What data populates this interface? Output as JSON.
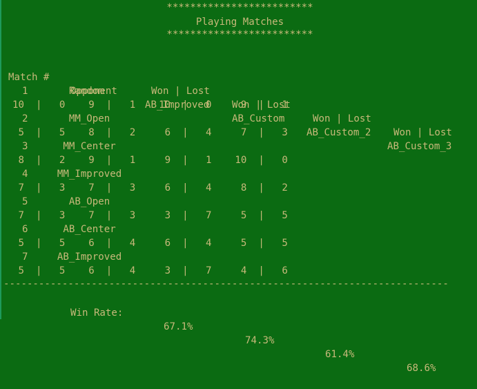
{
  "header": {
    "stars_top": "*************************",
    "title": "Playing Matches",
    "stars_bottom": "*************************"
  },
  "table": {
    "header_row1": "Match #   Opponent    AB_Improved   AB_Custom   AB_Custom_2  AB_Custom_3",
    "header_row2": "                        Won | Lost   Won | Lost   Won | Lost   Won | Lost",
    "rows": [
      {
        "num_opp": "  1       Random",
        "vals": "10  |   0    9  |   1    10  |   0     9  |   1"
      },
      {
        "num_opp": "  2       MM_Open",
        "vals": " 5  |   5    8  |   2     6  |   4     7  |   3"
      },
      {
        "num_opp": "  3      MM_Center",
        "vals": " 8  |   2    9  |   1     9  |   1    10  |   0"
      },
      {
        "num_opp": "  4     MM_Improved",
        "vals": " 7  |   3    7  |   3     6  |   4     8  |   2"
      },
      {
        "num_opp": "  5       AB_Open",
        "vals": " 7  |   3    7  |   3     3  |   7     5  |   5"
      },
      {
        "num_opp": "  6      AB_Center",
        "vals": " 5  |   5    6  |   4     6  |   4     5  |   5"
      },
      {
        "num_opp": "  7     AB_Improved",
        "vals": " 5  |   5    6  |   4     3  |   7     4  |   6"
      }
    ]
  },
  "divider": "----------------------------------------------------------------------------",
  "win_rate": {
    "label": "Win Rate:",
    "values": [
      "67.1%",
      "74.3%",
      "61.4%",
      "68.6%"
    ]
  },
  "colors": {
    "background": "#0b6b12",
    "text": "#c8b97a"
  }
}
